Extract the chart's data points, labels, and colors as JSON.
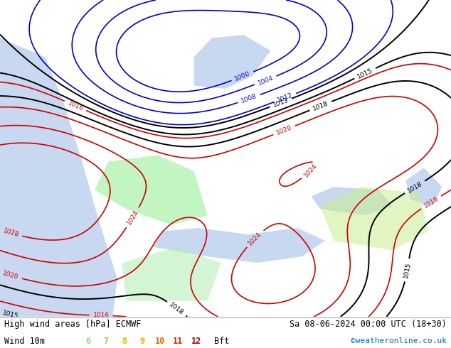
{
  "title_left": "High wind areas [hPa] ECMWF",
  "title_right": "Sa 08-06-2024 00:00 UTC (18+30)",
  "subtitle_left": "Wind 10m",
  "legend_values": [
    "6",
    "7",
    "8",
    "9",
    "10",
    "11",
    "12"
  ],
  "legend_colors": [
    "#88dd88",
    "#aabb44",
    "#ddbb00",
    "#ffaa00",
    "#ee6600",
    "#dd2200",
    "#aa0000"
  ],
  "legend_suffix": "Bft",
  "watermark": "©weatheronline.co.uk",
  "bg_color": "#d0e8c0",
  "sea_color": "#c8d8f0",
  "isobar_color_red": "#cc0000",
  "isobar_color_blue": "#0000cc",
  "isobar_color_black": "#000000",
  "fig_width": 6.34,
  "fig_height": 4.9,
  "dpi": 100
}
